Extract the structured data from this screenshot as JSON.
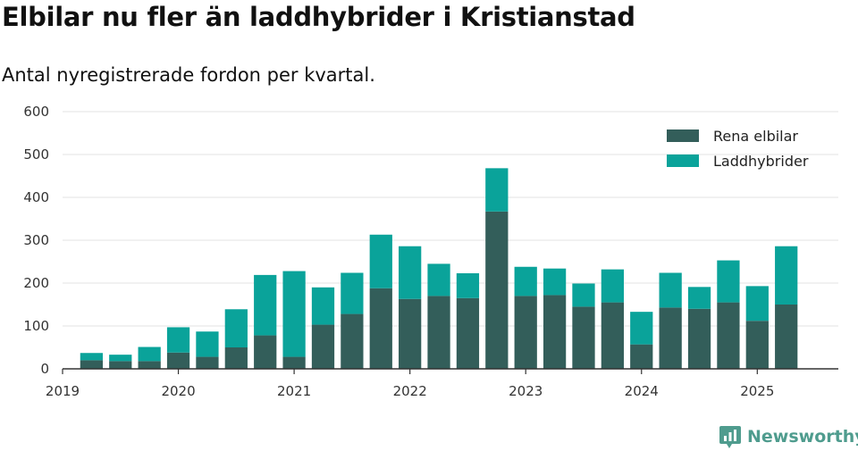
{
  "title": "Elbilar nu fler än laddhybrider i Kristianstad",
  "subtitle": "Antal nyregistrerade fordon per kvartal.",
  "brand": "Newsworthy",
  "colors": {
    "elbilar": "#335e5a",
    "laddhybrider": "#0aa39a",
    "grid": "#e3e3e3",
    "axis": "#333333"
  },
  "chart_data": {
    "type": "bar",
    "stacked": true,
    "title": "Elbilar nu fler än laddhybrider i Kristianstad",
    "subtitle": "Antal nyregistrerade fordon per kvartal.",
    "ylim": [
      0,
      600
    ],
    "yticks": [
      0,
      100,
      200,
      300,
      400,
      500,
      600
    ],
    "xlim": [
      2019,
      2025.7
    ],
    "xticks": [
      "2019",
      "2020",
      "2021",
      "2022",
      "2023",
      "2024",
      "2025"
    ],
    "grid": true,
    "legend_position": "top-right",
    "categories": [
      "2019 Q2",
      "2019 Q3",
      "2019 Q4",
      "2020 Q1",
      "2020 Q2",
      "2020 Q3",
      "2020 Q4",
      "2021 Q1",
      "2021 Q2",
      "2021 Q3",
      "2021 Q4",
      "2022 Q1",
      "2022 Q2",
      "2022 Q3",
      "2022 Q4",
      "2023 Q1",
      "2023 Q2",
      "2023 Q3",
      "2023 Q4",
      "2024 Q1",
      "2024 Q2",
      "2024 Q3",
      "2024 Q4",
      "2025 Q1",
      "2025 Q2"
    ],
    "series": [
      {
        "name": "Rena elbilar",
        "values": [
          20,
          18,
          18,
          38,
          28,
          50,
          78,
          28,
          103,
          128,
          188,
          163,
          170,
          165,
          367,
          170,
          172,
          145,
          155,
          57,
          143,
          140,
          155,
          112,
          150
        ]
      },
      {
        "name": "Laddhybrider",
        "values": [
          17,
          15,
          33,
          59,
          59,
          89,
          141,
          200,
          87,
          96,
          125,
          123,
          75,
          58,
          101,
          68,
          62,
          54,
          77,
          76,
          81,
          51,
          98,
          81,
          136
        ]
      }
    ]
  }
}
